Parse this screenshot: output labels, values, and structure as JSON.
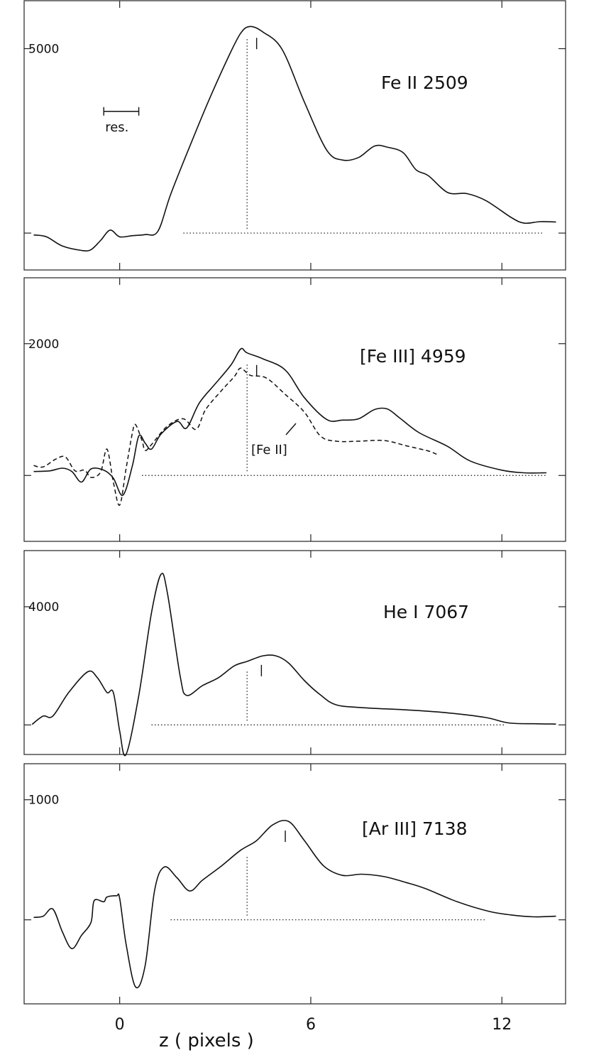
{
  "chart_data": {
    "type": "line",
    "xlabel": "z  ( pixels )",
    "x_ticks": [
      0,
      6,
      12
    ],
    "xlim": [
      -3,
      14
    ],
    "panels": [
      {
        "label": "Fe II  2509",
        "y_tick_labels": [
          "5000"
        ],
        "y_ticks": [
          0,
          5000
        ],
        "ylim": [
          -1000,
          6300
        ],
        "centroid_z": 4.3,
        "reference_z": 4.0,
        "baseline_range": [
          2.0,
          13.3
        ],
        "resolution_label": "res.",
        "resolution_z": [
          -0.5,
          0.6
        ],
        "resolution_y": 3300,
        "series": [
          {
            "style": "solid",
            "points": [
              [
                -2.7,
                -50
              ],
              [
                -2.3,
                -100
              ],
              [
                -1.8,
                -350
              ],
              [
                -1.2,
                -470
              ],
              [
                -0.9,
                -450
              ],
              [
                -0.6,
                -200
              ],
              [
                -0.3,
                80
              ],
              [
                0,
                -100
              ],
              [
                0.4,
                -70
              ],
              [
                0.8,
                -40
              ],
              [
                1.2,
                50
              ],
              [
                1.6,
                1050
              ],
              [
                2.2,
                2350
              ],
              [
                2.8,
                3600
              ],
              [
                3.4,
                4750
              ],
              [
                3.8,
                5420
              ],
              [
                4.1,
                5600
              ],
              [
                4.5,
                5450
              ],
              [
                5.1,
                4980
              ],
              [
                5.8,
                3550
              ],
              [
                6.5,
                2250
              ],
              [
                7,
                1980
              ],
              [
                7.5,
                2050
              ],
              [
                8,
                2360
              ],
              [
                8.4,
                2330
              ],
              [
                8.9,
                2180
              ],
              [
                9.3,
                1720
              ],
              [
                9.7,
                1550
              ],
              [
                10.3,
                1100
              ],
              [
                10.9,
                1070
              ],
              [
                11.5,
                880
              ],
              [
                12.3,
                420
              ],
              [
                12.7,
                270
              ],
              [
                13.2,
                310
              ],
              [
                13.7,
                300
              ]
            ]
          }
        ]
      },
      {
        "label": "[Fe III]  4959",
        "y_tick_labels": [
          "2000"
        ],
        "y_ticks": [
          0,
          2000
        ],
        "ylim": [
          -1000,
          3000
        ],
        "centroid_z": 4.3,
        "reference_z": 4.0,
        "baseline_range": [
          0.7,
          13.4
        ],
        "series": [
          {
            "style": "solid",
            "points": [
              [
                -2.7,
                60
              ],
              [
                -2.2,
                70
              ],
              [
                -1.8,
                110
              ],
              [
                -1.5,
                60
              ],
              [
                -1.2,
                -100
              ],
              [
                -0.9,
                100
              ],
              [
                -0.5,
                80
              ],
              [
                -0.2,
                -40
              ],
              [
                0.1,
                -300
              ],
              [
                0.4,
                150
              ],
              [
                0.6,
                600
              ],
              [
                0.8,
                490
              ],
              [
                1,
                400
              ],
              [
                1.3,
                630
              ],
              [
                1.8,
                820
              ],
              [
                2.1,
                720
              ],
              [
                2.5,
                1100
              ],
              [
                3.0,
                1390
              ],
              [
                3.5,
                1680
              ],
              [
                3.8,
                1920
              ],
              [
                4.0,
                1860
              ],
              [
                4.5,
                1770
              ],
              [
                5.2,
                1600
              ],
              [
                5.8,
                1180
              ],
              [
                6.5,
                850
              ],
              [
                7.0,
                840
              ],
              [
                7.5,
                860
              ],
              [
                8.0,
                1000
              ],
              [
                8.4,
                1010
              ],
              [
                8.8,
                870
              ],
              [
                9.4,
                650
              ],
              [
                10.3,
                440
              ],
              [
                11.0,
                220
              ],
              [
                12.0,
                80
              ],
              [
                12.7,
                40
              ],
              [
                13.4,
                40
              ]
            ]
          },
          {
            "name": "[Fe II]",
            "style": "dashed",
            "points": [
              [
                -2.7,
                150
              ],
              [
                -2.4,
                130
              ],
              [
                -2.0,
                250
              ],
              [
                -1.7,
                280
              ],
              [
                -1.4,
                70
              ],
              [
                -1.1,
                80
              ],
              [
                -0.9,
                -30
              ],
              [
                -0.6,
                50
              ],
              [
                -0.4,
                400
              ],
              [
                -0.2,
                -100
              ],
              [
                0,
                -450
              ],
              [
                0.2,
                100
              ],
              [
                0.4,
                650
              ],
              [
                0.5,
                770
              ],
              [
                0.7,
                530
              ],
              [
                0.8,
                380
              ],
              [
                1.0,
                470
              ],
              [
                1.5,
                750
              ],
              [
                2.0,
                860
              ],
              [
                2.4,
                700
              ],
              [
                2.7,
                1000
              ],
              [
                3.2,
                1290
              ],
              [
                3.6,
                1500
              ],
              [
                3.8,
                1630
              ],
              [
                4.1,
                1520
              ],
              [
                4.6,
                1480
              ],
              [
                5.2,
                1230
              ],
              [
                5.8,
                960
              ],
              [
                6.3,
                600
              ],
              [
                6.8,
                520
              ],
              [
                7.5,
                520
              ],
              [
                8.3,
                530
              ],
              [
                9.0,
                450
              ],
              [
                9.7,
                370
              ],
              [
                10.0,
                310
              ]
            ]
          }
        ],
        "annotation": "[Fe II]"
      },
      {
        "label": "He I  7067",
        "y_tick_labels": [
          "4000"
        ],
        "y_ticks": [
          0,
          4000
        ],
        "ylim": [
          -1000,
          5900
        ],
        "centroid_z": 4.45,
        "reference_z": 4.0,
        "baseline_range": [
          1.0,
          12.1
        ],
        "series": [
          {
            "style": "solid",
            "points": [
              [
                -2.75,
                20
              ],
              [
                -2.4,
                300
              ],
              [
                -2.1,
                300
              ],
              [
                -1.6,
                1100
              ],
              [
                -1.0,
                1800
              ],
              [
                -0.7,
                1600
              ],
              [
                -0.4,
                1100
              ],
              [
                -0.2,
                1100
              ],
              [
                0,
                -200
              ],
              [
                0.2,
                -1000
              ],
              [
                0.6,
                1000
              ],
              [
                1.0,
                3800
              ],
              [
                1.3,
                5100
              ],
              [
                1.5,
                4450
              ],
              [
                1.9,
                1650
              ],
              [
                2.1,
                1000
              ],
              [
                2.6,
                1330
              ],
              [
                3.1,
                1600
              ],
              [
                3.6,
                2000
              ],
              [
                4.0,
                2150
              ],
              [
                4.5,
                2340
              ],
              [
                4.9,
                2340
              ],
              [
                5.3,
                2100
              ],
              [
                5.8,
                1500
              ],
              [
                6.3,
                1020
              ],
              [
                6.8,
                680
              ],
              [
                7.7,
                580
              ],
              [
                9.0,
                510
              ],
              [
                10.3,
                410
              ],
              [
                11.5,
                250
              ],
              [
                12.2,
                70
              ],
              [
                13.0,
                40
              ],
              [
                13.7,
                30
              ]
            ]
          }
        ]
      },
      {
        "label": "[Ar III]  7138",
        "y_tick_labels": [
          "1000"
        ],
        "y_ticks": [
          0,
          1000
        ],
        "ylim": [
          -700,
          1300
        ],
        "centroid_z": 5.2,
        "reference_z": 4.0,
        "baseline_range": [
          1.6,
          11.5
        ],
        "series": [
          {
            "style": "solid",
            "points": [
              [
                -2.7,
                20
              ],
              [
                -2.4,
                30
              ],
              [
                -2.1,
                90
              ],
              [
                -1.8,
                -100
              ],
              [
                -1.5,
                -240
              ],
              [
                -1.2,
                -130
              ],
              [
                -0.9,
                -20
              ],
              [
                -0.8,
                160
              ],
              [
                -0.5,
                150
              ],
              [
                -0.4,
                190
              ],
              [
                -0.1,
                200
              ],
              [
                0,
                180
              ],
              [
                0.2,
                -200
              ],
              [
                0.5,
                -560
              ],
              [
                0.8,
                -380
              ],
              [
                1.1,
                250
              ],
              [
                1.4,
                440
              ],
              [
                1.8,
                350
              ],
              [
                2.2,
                240
              ],
              [
                2.6,
                330
              ],
              [
                3.2,
                450
              ],
              [
                3.8,
                580
              ],
              [
                4.3,
                660
              ],
              [
                4.8,
                790
              ],
              [
                5.3,
                820
              ],
              [
                5.8,
                660
              ],
              [
                6.4,
                450
              ],
              [
                7.0,
                370
              ],
              [
                7.6,
                380
              ],
              [
                8.3,
                360
              ],
              [
                9.0,
                310
              ],
              [
                9.6,
                260
              ],
              [
                10.6,
                150
              ],
              [
                11.6,
                70
              ],
              [
                12.3,
                40
              ],
              [
                13.0,
                25
              ],
              [
                13.7,
                30
              ]
            ]
          }
        ]
      }
    ]
  }
}
